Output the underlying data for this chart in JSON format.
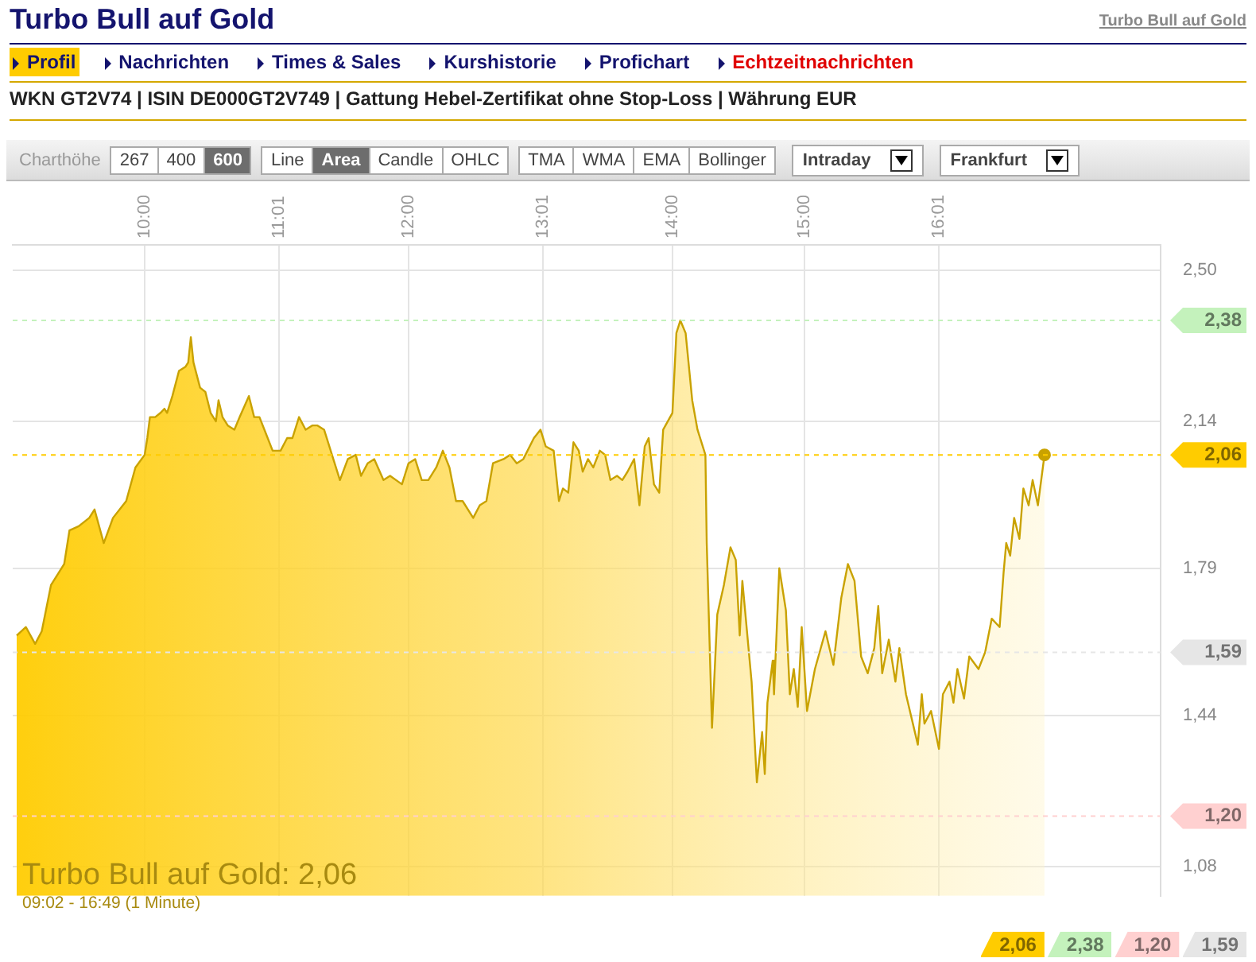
{
  "chart_data": {
    "type": "area",
    "title": "Turbo Bull auf Gold",
    "subtitle": "WKN GT2V74 | ISIN DE000GT2V749 | Gattung Hebel-Zertifikat ohne Stop-Loss | Währung EUR",
    "annotations": [
      "Turbo Bull auf Gold",
      "Profil",
      "Nachrichten",
      "Times & Sales",
      "Kurshistorie",
      "Profichart",
      "Echtzeitnachrichten",
      "Charthöhe",
      "267",
      "400",
      "600",
      "Line",
      "Area",
      "Candle",
      "OHLC",
      "TMA",
      "WMA",
      "EMA",
      "Bollinger",
      "Intraday",
      "Frankfurt",
      "Turbo Bull auf Gold: 2,06",
      "09:02 - 16:49 (1 Minute)"
    ],
    "ref_lines": [
      {
        "axis": "y",
        "value": 2.06,
        "label": "2,06",
        "color": "#ffcc00"
      },
      {
        "axis": "y",
        "value": 2.38,
        "label": "2,38",
        "color": "#c4f2bc"
      },
      {
        "axis": "y",
        "value": 1.2,
        "label": "1,20",
        "color": "#ffd0d0"
      },
      {
        "axis": "y",
        "value": 1.59,
        "label": "1,59",
        "color": "#e6e6e6"
      }
    ],
    "x": [
      9.03,
      9.1,
      9.17,
      9.22,
      9.29,
      9.39,
      9.43,
      9.5,
      9.58,
      9.62,
      9.69,
      9.76,
      9.86,
      9.93,
      10,
      10.02,
      10.04,
      10.08,
      10.12,
      10.15,
      10.17,
      10.21,
      10.26,
      10.31,
      10.33,
      10.35,
      10.37,
      10.42,
      10.46,
      10.5,
      10.54,
      10.56,
      10.59,
      10.63,
      10.68,
      10.72,
      10.79,
      10.83,
      10.87,
      10.92,
      10.97,
      11.03,
      11.08,
      11.12,
      11.17,
      11.22,
      11.27,
      11.31,
      11.36,
      11.41,
      11.48,
      11.54,
      11.6,
      11.64,
      11.69,
      11.74,
      11.81,
      11.86,
      11.95,
      12,
      12.05,
      12.1,
      12.15,
      12.21,
      12.26,
      12.31,
      12.36,
      12.41,
      12.49,
      12.54,
      12.59,
      12.64,
      12.72,
      12.77,
      12.82,
      12.87,
      12.95,
      13,
      13.04,
      13.1,
      13.14,
      13.17,
      13.21,
      13.25,
      13.29,
      13.32,
      13.36,
      13.4,
      13.45,
      13.49,
      13.53,
      13.58,
      13.62,
      13.66,
      13.71,
      13.75,
      13.79,
      13.82,
      13.86,
      13.9,
      13.93,
      14,
      14.03,
      14.06,
      14.1,
      14.15,
      14.19,
      14.25,
      14.26,
      14.3,
      14.34,
      14.39,
      14.44,
      14.48,
      14.51,
      14.53,
      14.6,
      14.64,
      14.68,
      14.7,
      14.72,
      14.76,
      14.77,
      14.81,
      14.86,
      14.89,
      14.92,
      14.95,
      14.98,
      15.02,
      15.08,
      15.16,
      15.22,
      15.28,
      15.33,
      15.38,
      15.43,
      15.48,
      15.53,
      15.56,
      15.59,
      15.64,
      15.69,
      15.72,
      15.77,
      15.86,
      15.89,
      15.91,
      15.96,
      16.02,
      16.05,
      16.1,
      16.13,
      16.16,
      16.21,
      16.25,
      16.32,
      16.37,
      16.42,
      16.48,
      16.51,
      16.53,
      16.56,
      16.59,
      16.63,
      16.66,
      16.7,
      16.73,
      16.77,
      16.82
    ],
    "series": [
      {
        "color": "#c9a200",
        "values": [
          1.63,
          1.65,
          1.61,
          1.64,
          1.75,
          1.8,
          1.88,
          1.89,
          1.91,
          1.93,
          1.85,
          1.91,
          1.95,
          2.03,
          2.06,
          2.1,
          2.15,
          2.15,
          2.16,
          2.17,
          2.16,
          2.2,
          2.26,
          2.27,
          2.28,
          2.34,
          2.28,
          2.22,
          2.21,
          2.16,
          2.14,
          2.19,
          2.15,
          2.13,
          2.12,
          2.15,
          2.2,
          2.15,
          2.15,
          2.11,
          2.07,
          2.07,
          2.1,
          2.1,
          2.15,
          2.12,
          2.13,
          2.13,
          2.12,
          2.07,
          2,
          2.05,
          2.06,
          2.01,
          2.04,
          2.05,
          2,
          2.01,
          1.99,
          2.04,
          2.05,
          2,
          2,
          2.03,
          2.07,
          2.03,
          1.95,
          1.95,
          1.91,
          1.94,
          1.95,
          2.04,
          2.05,
          2.06,
          2.04,
          2.05,
          2.1,
          2.12,
          2.08,
          2.07,
          1.95,
          1.98,
          1.97,
          2.09,
          2.07,
          2.02,
          2.05,
          2.03,
          2.07,
          2.06,
          2,
          2.01,
          2,
          2.02,
          2.05,
          1.94,
          2.08,
          2.1,
          1.99,
          1.97,
          2.12,
          2.16,
          2.35,
          2.38,
          2.35,
          2.19,
          2.12,
          2.06,
          1.85,
          1.41,
          1.68,
          1.75,
          1.84,
          1.81,
          1.63,
          1.76,
          1.52,
          1.28,
          1.4,
          1.3,
          1.47,
          1.57,
          1.49,
          1.79,
          1.69,
          1.49,
          1.55,
          1.46,
          1.65,
          1.45,
          1.55,
          1.64,
          1.56,
          1.72,
          1.8,
          1.76,
          1.58,
          1.54,
          1.6,
          1.7,
          1.54,
          1.62,
          1.52,
          1.6,
          1.49,
          1.37,
          1.49,
          1.42,
          1.45,
          1.36,
          1.49,
          1.52,
          1.47,
          1.55,
          1.48,
          1.58,
          1.55,
          1.59,
          1.67,
          1.65,
          1.78,
          1.85,
          1.82,
          1.91,
          1.86,
          1.98,
          1.94,
          2,
          1.94,
          2.06
        ]
      }
    ],
    "xlim": [
      9,
      17.7
    ],
    "xticks": [
      {
        "value": 10,
        "label": "10:00"
      },
      {
        "value": 11.0167,
        "label": "11:01"
      },
      {
        "value": 12,
        "label": "12:00"
      },
      {
        "value": 13.0167,
        "label": "13:01"
      },
      {
        "value": 14,
        "label": "14:00"
      },
      {
        "value": 15,
        "label": "15:00"
      },
      {
        "value": 16.0167,
        "label": "16:01"
      }
    ],
    "ylim": [
      1.01,
      2.56
    ],
    "yticks": [
      {
        "value": 1.08,
        "label": "1,08"
      },
      {
        "value": 1.44,
        "label": "1,44"
      },
      {
        "value": 1.79,
        "label": "1,79"
      },
      {
        "value": 2.14,
        "label": "2,14"
      },
      {
        "value": 2.5,
        "label": "2,50"
      }
    ],
    "grid": true,
    "legend": false
  }
}
